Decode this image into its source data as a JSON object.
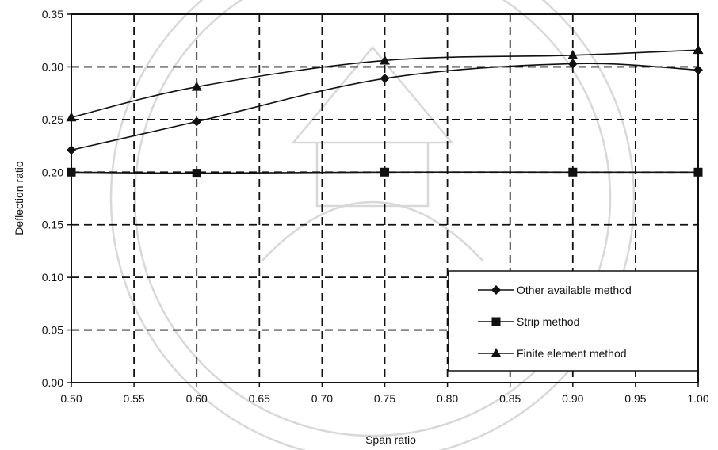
{
  "chart_data": {
    "type": "line",
    "xlabel": "Span ratio",
    "ylabel": "Deflection ratio",
    "xlim": [
      0.5,
      1.0
    ],
    "ylim": [
      0.0,
      0.35
    ],
    "x_ticks": [
      "0.50",
      "0.55",
      "0.60",
      "0.65",
      "0.70",
      "0.75",
      "0.80",
      "0.85",
      "0.90",
      "0.95",
      "1.00"
    ],
    "y_ticks": [
      "0.00",
      "0.05",
      "0.10",
      "0.15",
      "0.20",
      "0.25",
      "0.30",
      "0.35"
    ],
    "grid": true,
    "legend_position": "bottom-right",
    "series": [
      {
        "name": "Other available method",
        "marker": "diamond",
        "x": [
          0.5,
          0.6,
          0.75,
          0.9,
          1.0
        ],
        "y": [
          0.221,
          0.248,
          0.289,
          0.303,
          0.297
        ]
      },
      {
        "name": "Strip method",
        "marker": "square",
        "x": [
          0.5,
          0.6,
          0.75,
          0.9,
          1.0
        ],
        "y": [
          0.2,
          0.199,
          0.2,
          0.2,
          0.2
        ]
      },
      {
        "name": "Finite element method",
        "marker": "triangle",
        "x": [
          0.5,
          0.6,
          0.75,
          0.9,
          1.0
        ],
        "y": [
          0.252,
          0.281,
          0.306,
          0.311,
          0.316
        ]
      }
    ]
  }
}
